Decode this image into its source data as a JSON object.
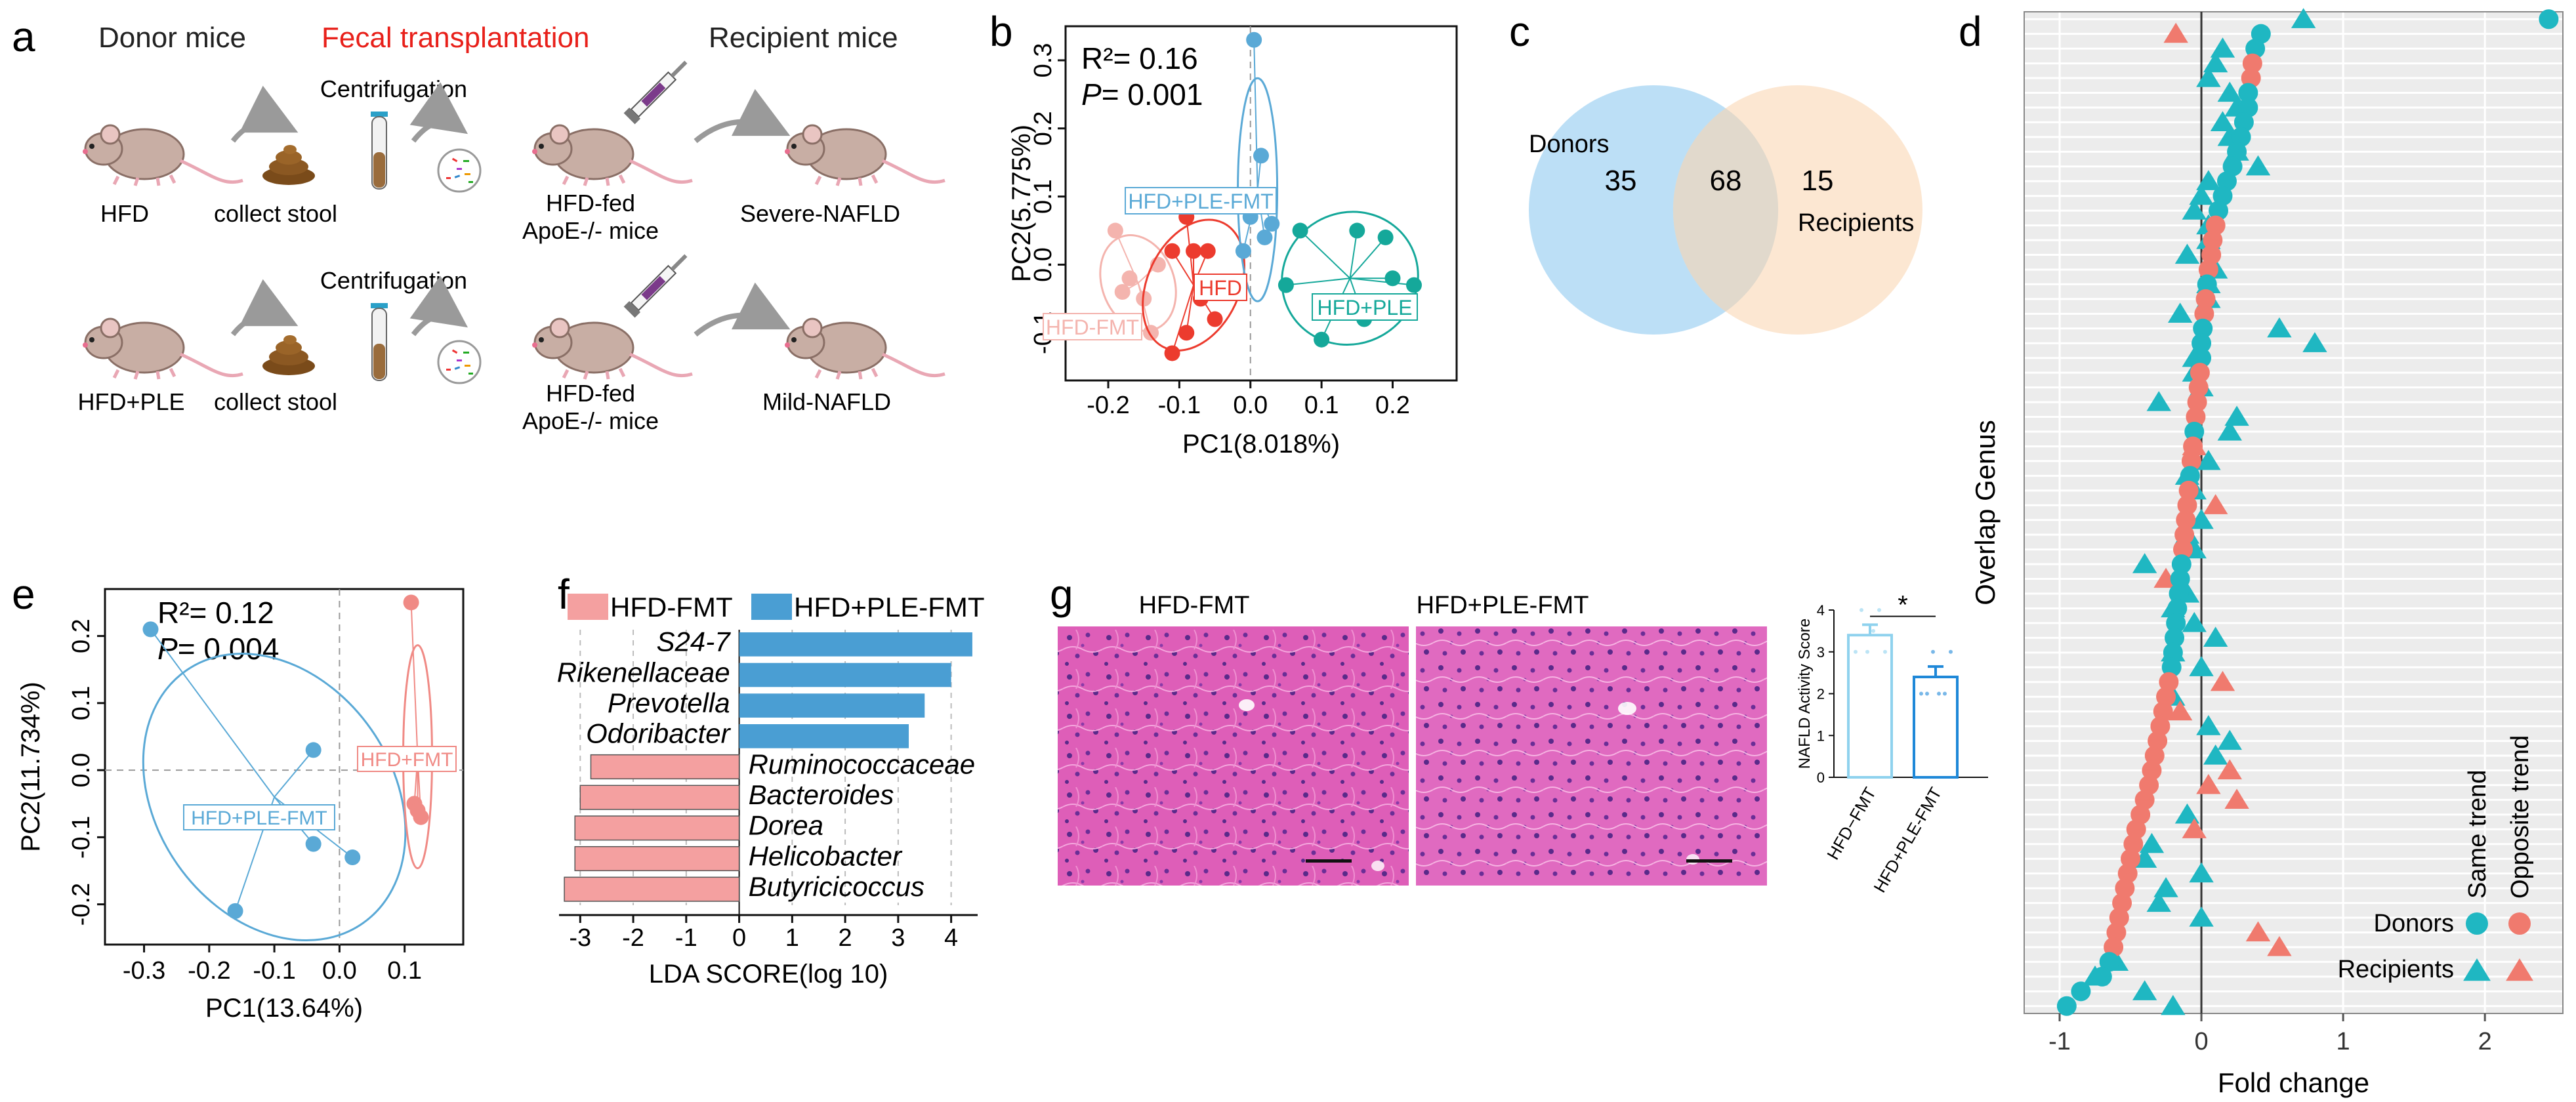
{
  "panels": {
    "a": {
      "letter": "a",
      "donor_title": "Donor mice",
      "transplant_title": "Fecal transplantation",
      "recipient_title": "Recipient mice",
      "centrifugation_label": "Centrifugation",
      "row1": {
        "donor": "HFD",
        "stool": "collect stool",
        "recipient_l1": "HFD-fed",
        "recipient_l2": "ApoE-/- mice",
        "outcome": "Severe-NAFLD"
      },
      "row2": {
        "donor": "HFD+PLE",
        "stool": "collect stool",
        "recipient_l1": "HFD-fed",
        "recipient_l2": "ApoE-/- mice",
        "outcome": "Mild-NAFLD"
      }
    },
    "b": {
      "letter": "b",
      "r2": "R²= 0.16",
      "p_prefix": "P",
      "p_value": "= 0.001"
    },
    "c": {
      "letter": "c",
      "donors_label": "Donors",
      "recipients_label": "Recipients",
      "donor_only": "35",
      "overlap": "68",
      "recipient_only": "15"
    },
    "d": {
      "letter": "d"
    },
    "e": {
      "letter": "e",
      "r2": "R²= 0.12",
      "p_prefix": "P",
      "p_value": "= 0.004"
    },
    "f": {
      "letter": "f",
      "legend_hfd": "HFD-FMT",
      "legend_ple": "HFD+PLE-FMT"
    },
    "g": {
      "letter": "g",
      "image_left_title": "HFD-FMT",
      "image_right_title": "HFD+PLE-FMT"
    }
  },
  "colors": {
    "hfd_fmt": "#f4a09a",
    "hfd_red": "#ec3b2e",
    "ple_teal": "#15a89a",
    "ple_fmt_blue": "#5aa9d6",
    "bar_blue": "#4a9ed3",
    "bar_pink": "#f4a0a0",
    "donors_dot": "#1fb7c2",
    "recipients_dot": "#f07a6e",
    "venn_blue": "#b5dcf5",
    "venn_orange": "#fbe3ca",
    "he_pink": "#d94fb0"
  },
  "chart_data": [
    {
      "id": "b",
      "type": "scatter",
      "xlabel": "PC1(8.018%)",
      "ylabel": "PC2(5.775%)",
      "xlim": [
        -0.26,
        0.29
      ],
      "ylim": [
        -0.17,
        0.35
      ],
      "xticks": [
        -0.2,
        -0.1,
        0.0,
        0.1,
        0.2
      ],
      "xtick_labels": [
        "-0.2",
        "-0.1",
        "0.0",
        "0.1",
        "0.2"
      ],
      "yticks": [
        -0.1,
        0.0,
        0.1,
        0.2,
        0.3
      ],
      "ytick_labels": [
        "-0.1",
        "0.0",
        "0.1",
        "0.2",
        "0.3"
      ],
      "series": [
        {
          "name": "HFD-FMT",
          "color": "#f4b4ae",
          "points": [
            [
              -0.19,
              0.05
            ],
            [
              -0.17,
              -0.02
            ],
            [
              -0.18,
              -0.04
            ],
            [
              -0.15,
              -0.05
            ],
            [
              -0.14,
              -0.1
            ],
            [
              -0.13,
              0.0
            ]
          ],
          "center": [
            -0.158,
            -0.027
          ]
        },
        {
          "name": "HFD",
          "color": "#ec3b2e",
          "points": [
            [
              -0.11,
              0.02
            ],
            [
              -0.09,
              0.07
            ],
            [
              -0.08,
              0.02
            ],
            [
              -0.07,
              -0.05
            ],
            [
              -0.06,
              0.02
            ],
            [
              -0.09,
              -0.1
            ],
            [
              -0.05,
              -0.08
            ],
            [
              -0.11,
              -0.13
            ]
          ],
          "center": [
            -0.08,
            -0.03
          ]
        },
        {
          "name": "HFD+PLE-FMT",
          "color": "#5aa9d6",
          "points": [
            [
              0.005,
              0.33
            ],
            [
              0.015,
              0.16
            ],
            [
              0.0,
              0.07
            ],
            [
              0.02,
              0.04
            ],
            [
              -0.01,
              0.02
            ],
            [
              0.03,
              0.06
            ]
          ],
          "center": [
            0.01,
            0.11
          ]
        },
        {
          "name": "HFD+PLE",
          "color": "#15a89a",
          "points": [
            [
              0.07,
              0.05
            ],
            [
              0.05,
              -0.03
            ],
            [
              0.1,
              -0.11
            ],
            [
              0.16,
              -0.08
            ],
            [
              0.2,
              -0.02
            ],
            [
              0.23,
              -0.03
            ],
            [
              0.19,
              0.04
            ],
            [
              0.15,
              0.05
            ]
          ],
          "center": [
            0.14,
            -0.02
          ]
        }
      ],
      "labels": [
        "HFD+PLE-FMT",
        "HFD",
        "HFD+PLE",
        "HFD-FMT"
      ]
    },
    {
      "id": "d",
      "type": "scatter",
      "xlabel": "Fold change",
      "ylabel": "Overlap Genus",
      "xlim": [
        -1.25,
        2.55
      ],
      "xticks": [
        -1,
        0,
        1,
        2
      ],
      "xtick_labels": [
        "-1",
        "0",
        "1",
        "2"
      ],
      "n_rows": 68,
      "legend": {
        "row_labels": [
          "Donors",
          "Recipients"
        ],
        "col_labels": [
          "Same trend",
          "Opposite trend"
        ]
      },
      "donors_fold_change": [
        2.45,
        0.42,
        0.38,
        0.36,
        0.35,
        0.33,
        0.33,
        0.3,
        0.28,
        0.25,
        0.22,
        0.18,
        0.15,
        0.12,
        0.1,
        0.08,
        0.07,
        0.05,
        0.04,
        0.03,
        0.02,
        0.01,
        0.0,
        0.0,
        -0.01,
        -0.02,
        -0.03,
        -0.04,
        -0.05,
        -0.06,
        -0.07,
        -0.08,
        -0.09,
        -0.1,
        -0.11,
        -0.12,
        -0.13,
        -0.14,
        -0.15,
        -0.16,
        -0.17,
        -0.18,
        -0.19,
        -0.2,
        -0.21,
        -0.23,
        -0.25,
        -0.27,
        -0.29,
        -0.31,
        -0.33,
        -0.35,
        -0.37,
        -0.4,
        -0.43,
        -0.46,
        -0.48,
        -0.5,
        -0.52,
        -0.54,
        -0.56,
        -0.58,
        -0.6,
        -0.62,
        -0.65,
        -0.7,
        -0.85,
        -0.95
      ],
      "donors_opposite_rows": [
        3,
        4,
        14,
        15,
        16,
        17,
        19,
        20,
        24,
        25,
        26,
        27,
        29,
        30,
        32,
        33,
        34,
        35,
        36,
        45,
        46,
        47,
        48,
        49,
        50,
        51,
        52,
        53,
        54,
        55,
        56,
        57,
        58,
        59,
        60,
        61,
        62,
        63
      ],
      "recipients_fold_change": [
        0.72,
        -0.18,
        0.15,
        0.1,
        0.05,
        0.2,
        0.25,
        0.15,
        0.2,
        0.25,
        0.4,
        0.05,
        0.0,
        -0.05,
        0.05,
        0.05,
        -0.1,
        0.1,
        0.05,
        0.05,
        -0.15,
        0.55,
        0.8,
        -0.05,
        -0.05,
        0.0,
        -0.3,
        0.25,
        0.2,
        -0.05,
        0.05,
        -0.1,
        -0.05,
        0.1,
        0.0,
        -0.1,
        -0.05,
        -0.4,
        -0.25,
        -0.1,
        -0.2,
        -0.05,
        0.1,
        -0.2,
        0.0,
        0.15,
        -0.2,
        -0.15,
        0.05,
        0.2,
        0.1,
        0.2,
        0.05,
        0.25,
        -0.1,
        -0.05,
        -0.35,
        -0.4,
        0.0,
        -0.25,
        -0.3,
        0.0,
        0.4,
        0.55,
        -0.6,
        -0.75,
        -0.4,
        -0.2
      ],
      "recipients_opposite_rows": [
        1,
        29,
        33,
        38,
        45,
        47,
        51,
        52,
        53,
        55,
        62,
        63
      ]
    },
    {
      "id": "e",
      "type": "scatter",
      "xlabel": "PC1(13.64%)",
      "ylabel": "PC2(11.734%)",
      "xlim": [
        -0.36,
        0.19
      ],
      "ylim": [
        -0.26,
        0.27
      ],
      "xticks": [
        -0.3,
        -0.2,
        -0.1,
        0.0,
        0.1
      ],
      "xtick_labels": [
        "-0.3",
        "-0.2",
        "-0.1",
        "0.0",
        "0.1"
      ],
      "yticks": [
        -0.2,
        -0.1,
        0.0,
        0.1,
        0.2
      ],
      "ytick_labels": [
        "-0.2",
        "-0.1",
        "0.0",
        "0.1",
        "0.2"
      ],
      "series": [
        {
          "name": "HFD+PLE-FMT",
          "color": "#5aa9d6",
          "points": [
            [
              -0.29,
              0.21
            ],
            [
              -0.04,
              0.03
            ],
            [
              -0.04,
              -0.11
            ],
            [
              0.02,
              -0.13
            ],
            [
              -0.16,
              -0.21
            ]
          ],
          "center": [
            -0.1,
            -0.04
          ]
        },
        {
          "name": "HFD+FMT",
          "color": "#f08a85",
          "points": [
            [
              0.11,
              0.25
            ],
            [
              0.115,
              -0.05
            ],
            [
              0.125,
              -0.07
            ],
            [
              0.12,
              -0.06
            ]
          ],
          "center": [
            0.12,
            0.02
          ]
        }
      ],
      "labels": [
        "HFD+PLE-FMT",
        "HFD+FMT"
      ]
    },
    {
      "id": "f",
      "type": "bar",
      "orientation": "horizontal",
      "xlabel": "LDA SCORE(log 10)",
      "xlim": [
        -3.4,
        4.5
      ],
      "xticks": [
        -3,
        -2,
        -1,
        0,
        1,
        2,
        3,
        4
      ],
      "xtick_labels": [
        "-3",
        "-2",
        "-1",
        "0",
        "1",
        "2",
        "3",
        "4"
      ],
      "categories": [
        "S24-7",
        "Rikenellaceae",
        "Prevotella",
        "Odoribacter",
        "Ruminococcaceae",
        "Bacteroides",
        "Dorea",
        "Helicobacter",
        "Butyricicoccus"
      ],
      "values": [
        4.4,
        4.0,
        3.5,
        3.2,
        -2.8,
        -3.0,
        -3.1,
        -3.1,
        -3.3
      ],
      "groups": [
        "HFD+PLE-FMT",
        "HFD+PLE-FMT",
        "HFD+PLE-FMT",
        "HFD+PLE-FMT",
        "HFD-FMT",
        "HFD-FMT",
        "HFD-FMT",
        "HFD-FMT",
        "HFD-FMT"
      ]
    },
    {
      "id": "g",
      "type": "bar",
      "ylabel": "NAFLD Activity Score",
      "ylim": [
        0,
        4
      ],
      "yticks": [
        0,
        1,
        2,
        3,
        4
      ],
      "ytick_labels": [
        "0",
        "1",
        "2",
        "3",
        "4"
      ],
      "categories": [
        "HFD−FMT",
        "HFD+PLE-FMT"
      ],
      "values": [
        3.4,
        2.4
      ],
      "errors": [
        0.25,
        0.25
      ],
      "points": [
        [
          3,
          4,
          3,
          3.5,
          4,
          3
        ],
        [
          2,
          2,
          3,
          2,
          2,
          3
        ]
      ],
      "significance": "*"
    }
  ]
}
